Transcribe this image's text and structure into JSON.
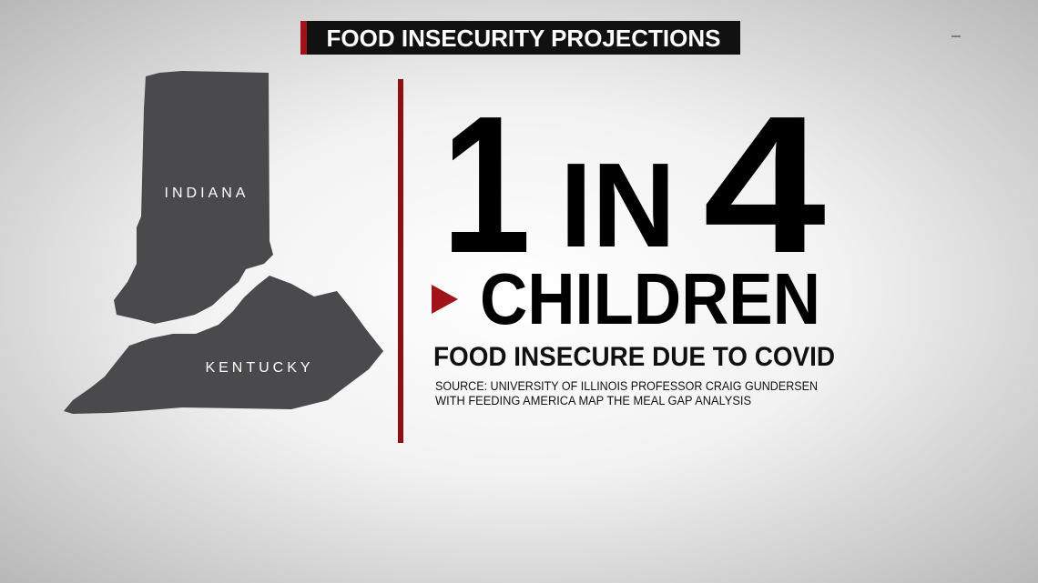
{
  "header": {
    "title": "FOOD INSECURITY PROJECTIONS"
  },
  "map": {
    "labels": [
      "INDIANA",
      "KENTUCKY"
    ]
  },
  "headline": {
    "number": "1",
    "connector": "IN",
    "total": "4",
    "subject": "CHILDREN"
  },
  "subhead": "FOOD INSECURE DUE TO COVID",
  "source": {
    "lines": [
      "SOURCE: UNIVERSITY OF ILLINOIS PROFESSOR CRAIG GUNDERSEN",
      "WITH FEEDING AMERICA MAP THE MEAL GAP ANALYSIS"
    ]
  }
}
